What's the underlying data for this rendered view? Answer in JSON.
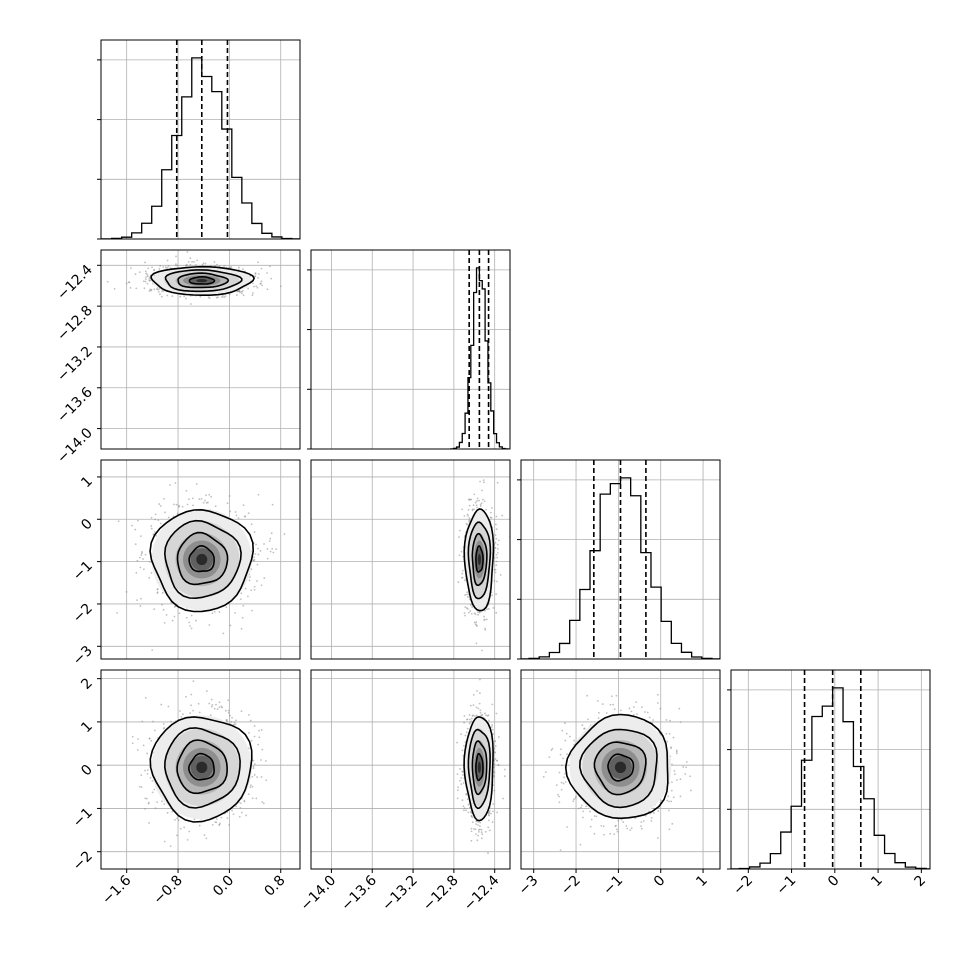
{
  "chart_data": {
    "type": "corner",
    "n_params": 4,
    "grid": true,
    "params": [
      {
        "range": [
          -2.0,
          1.1
        ],
        "ticks": [
          -1.6,
          -0.8,
          0.0,
          0.8
        ],
        "tick_labels": [
          "−1.6",
          "−0.8",
          "0.0",
          "0.8"
        ],
        "center": -0.43,
        "sigma": 0.39,
        "quantiles": [
          -0.82,
          -0.43,
          -0.03
        ]
      },
      {
        "range": [
          -14.2,
          -12.25
        ],
        "ticks": [
          -14.0,
          -13.6,
          -13.2,
          -12.8,
          -12.4
        ],
        "tick_labels": [
          "−14.0",
          "−13.6",
          "−13.2",
          "−12.8",
          "−12.4"
        ],
        "center": -12.55,
        "sigma": 0.07,
        "quantiles": [
          -12.65,
          -12.55,
          -12.46
        ]
      },
      {
        "range": [
          -3.3,
          1.4
        ],
        "ticks": [
          -3,
          -2,
          -1,
          0,
          1
        ],
        "tick_labels": [
          "−3",
          "−2",
          "−1",
          "0",
          "1"
        ],
        "center": -0.95,
        "sigma": 0.6,
        "quantiles": [
          -1.58,
          -0.95,
          -0.35
        ]
      },
      {
        "range": [
          -2.4,
          2.2
        ],
        "ticks": [
          -2,
          -1,
          0,
          1,
          2
        ],
        "tick_labels": [
          "−2",
          "−1",
          "0",
          "1",
          "2"
        ],
        "center": -0.05,
        "sigma": 0.6,
        "quantiles": [
          -0.7,
          -0.05,
          0.6
        ]
      }
    ],
    "pairs": [
      {
        "x": 0,
        "y": 1,
        "center_x": -0.43,
        "center_y": -12.55,
        "sigma_x": 0.39,
        "sigma_y": 0.07
      },
      {
        "x": 0,
        "y": 2,
        "center_x": -0.43,
        "center_y": -0.95,
        "sigma_x": 0.39,
        "sigma_y": 0.6
      },
      {
        "x": 1,
        "y": 2,
        "center_x": -12.55,
        "center_y": -0.95,
        "sigma_x": 0.07,
        "sigma_y": 0.6
      },
      {
        "x": 0,
        "y": 3,
        "center_x": -0.43,
        "center_y": -0.05,
        "sigma_x": 0.39,
        "sigma_y": 0.6
      },
      {
        "x": 1,
        "y": 3,
        "center_x": -12.55,
        "center_y": -0.05,
        "sigma_x": 0.07,
        "sigma_y": 0.6
      },
      {
        "x": 2,
        "y": 3,
        "center_x": -0.95,
        "center_y": -0.05,
        "sigma_x": 0.6,
        "sigma_y": 0.6
      }
    ],
    "contour_levels_sigma": [
      0.5,
      1.0,
      1.5,
      2.0
    ],
    "histogram_bins": 20,
    "colors": {
      "line": "#000000",
      "grid": "#b0b0b0",
      "scatter": "#8c8c8c"
    }
  }
}
